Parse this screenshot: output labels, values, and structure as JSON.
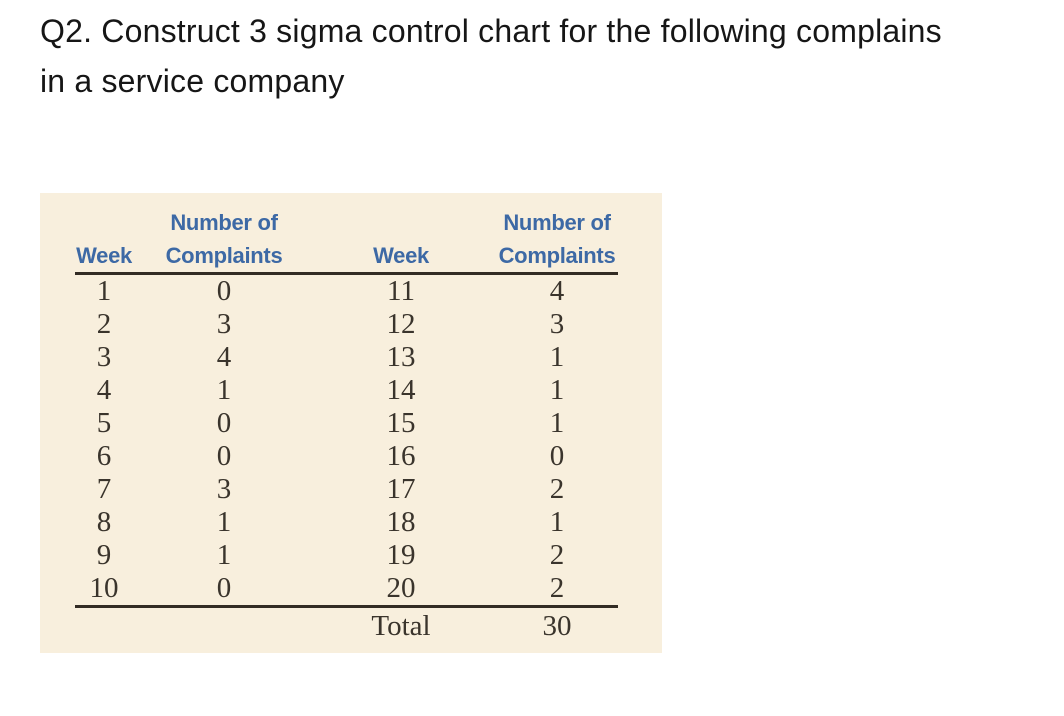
{
  "title": {
    "lines": [
      "Q2. Construct 3 sigma control chart for the following complains",
      "in a service company"
    ]
  },
  "table": {
    "headers": [
      "Week",
      "Number of Complaints",
      "Week",
      "Number of Complaints"
    ],
    "rows": [
      [
        "1",
        "0",
        "11",
        "4"
      ],
      [
        "2",
        "3",
        "12",
        "3"
      ],
      [
        "3",
        "4",
        "13",
        "1"
      ],
      [
        "4",
        "1",
        "14",
        "1"
      ],
      [
        "5",
        "0",
        "15",
        "1"
      ],
      [
        "6",
        "0",
        "16",
        "0"
      ],
      [
        "7",
        "3",
        "17",
        "2"
      ],
      [
        "8",
        "1",
        "18",
        "1"
      ],
      [
        "9",
        "1",
        "19",
        "2"
      ],
      [
        "10",
        "0",
        "20",
        "2"
      ]
    ],
    "total_label": "Total",
    "total_value": "30"
  },
  "colors": {
    "page_background": "#ffffff",
    "panel_background": "#f8efdd",
    "header_text": "#3d69a5",
    "body_text": "#3a342c",
    "rule": "#332c24",
    "title_text": "#161616"
  }
}
